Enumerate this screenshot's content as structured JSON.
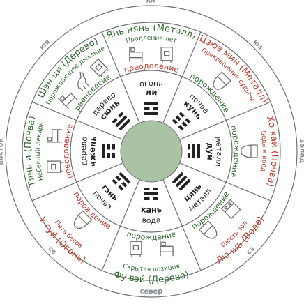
{
  "colors": {
    "green": "#2e6b2e",
    "red": "#c0392b",
    "dark": "#222222",
    "center": "#a9c3a4",
    "direction": "#8a8f96",
    "ring": "#6f6f6f"
  },
  "directions": [
    "юг",
    "юз",
    "запад",
    "сз",
    "север",
    "св",
    "восток",
    "юв"
  ],
  "sectors": [
    {
      "direction": "юг",
      "outer_name": "Янь нянь (Металл)",
      "outer_color": "green",
      "role": "Продление лет",
      "relation": "преодоление",
      "relation_color": "red",
      "icons": [
        "bed-icon",
        "safe-icon"
      ],
      "inner_element": "огонь",
      "inner_trigram": "ли",
      "trigram_lines": [
        1,
        0,
        1
      ]
    },
    {
      "direction": "юз",
      "outer_name": "Цзюэ мин (Металл)",
      "outer_color": "red",
      "role": "Прекращение судьбы",
      "relation": "порождение",
      "relation_color": "green",
      "icons": [
        "toilet-icon"
      ],
      "inner_element": "почва",
      "inner_trigram": "кунь",
      "trigram_lines": [
        0,
        0,
        0
      ]
    },
    {
      "direction": "запад",
      "outer_name": "Хо хай (Почва)",
      "outer_color": "red",
      "role": "Беда и вред",
      "relation": "порождение",
      "relation_color": "green",
      "icons": [
        "toilet-icon"
      ],
      "inner_element": "металл",
      "inner_trigram": "дуй",
      "trigram_lines": [
        0,
        1,
        1
      ]
    },
    {
      "direction": "сз",
      "outer_name": "Лю ша (Вода)",
      "outer_color": "red",
      "role": "Шесть зол",
      "relation": "порождение",
      "relation_color": "green",
      "icons": [
        "stove-icon",
        "toilet-icon"
      ],
      "inner_element": "металл",
      "inner_trigram": "цянь",
      "trigram_lines": [
        1,
        1,
        1
      ]
    },
    {
      "direction": "север",
      "outer_name": "Фу вэй (Дерево)",
      "outer_color": "green",
      "role": "Скрытая позиция",
      "relation": "порождение",
      "relation_color": "green",
      "icons": [
        "bed-icon",
        "safe-icon"
      ],
      "inner_element": "вода",
      "inner_trigram": "кань",
      "trigram_lines": [
        0,
        1,
        0
      ]
    },
    {
      "direction": "св",
      "outer_name": "У гуй (Огонь)",
      "outer_color": "red",
      "role": "Пять бесов",
      "relation": "порождение",
      "relation_color": "red",
      "icons": [
        "toilet-icon"
      ],
      "inner_element": "почва",
      "inner_trigram": "гэнь",
      "trigram_lines": [
        1,
        0,
        0
      ]
    },
    {
      "direction": "восток",
      "outer_name": "Тянь и (Почва)",
      "outer_color": "green",
      "role": "Небесный лекарь",
      "relation": "преодоление",
      "relation_color": "red",
      "icons": [
        "safe-icon",
        "bed-icon"
      ],
      "inner_element": "дерево",
      "inner_trigram": "чжень",
      "trigram_lines": [
        0,
        0,
        1
      ]
    },
    {
      "direction": "юв",
      "outer_name": "Шэн ци (Дерево)",
      "outer_color": "green",
      "role": "Порождающее дыхание",
      "relation": "равновесие",
      "relation_color": "green",
      "icons": [
        "bed-icon",
        "horse-icon",
        "safe-icon"
      ],
      "inner_element": "дерево",
      "inner_trigram": "сюнь",
      "trigram_lines": [
        1,
        1,
        0
      ]
    }
  ]
}
